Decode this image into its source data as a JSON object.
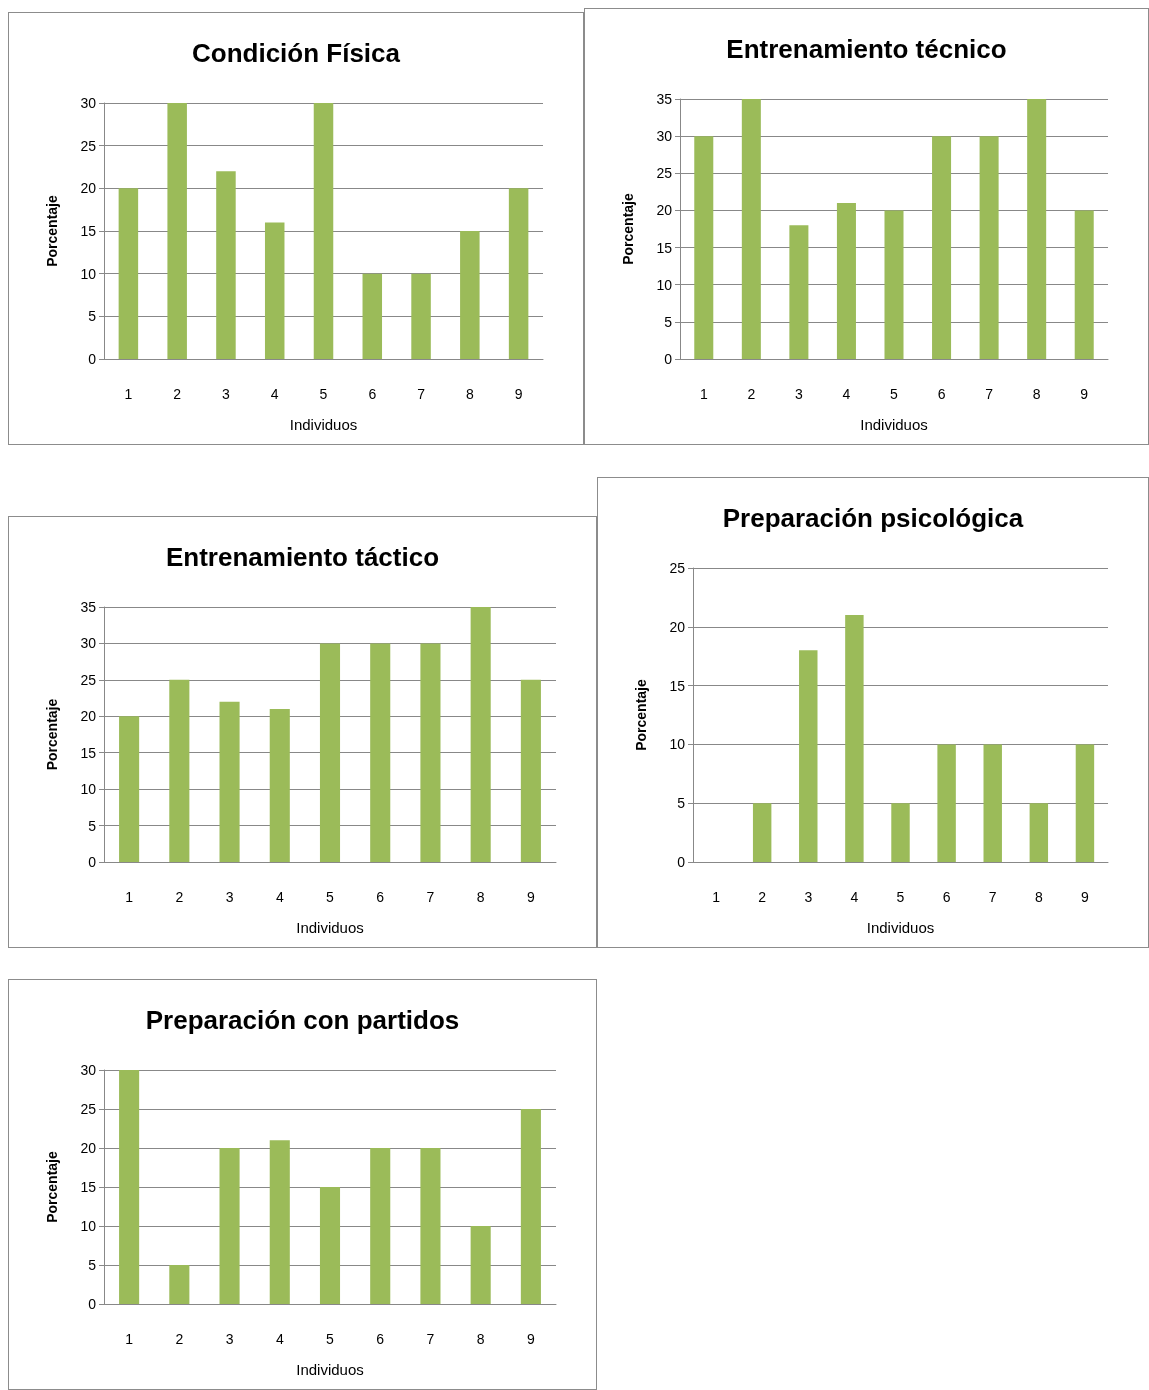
{
  "chart_data": [
    {
      "type": "bar",
      "title": "Condición Física",
      "xlabel": "Individuos",
      "ylabel": "Porcentaje",
      "categories": [
        "1",
        "2",
        "3",
        "4",
        "5",
        "6",
        "7",
        "8",
        "9"
      ],
      "values": [
        20,
        30,
        22,
        16,
        30,
        10,
        10,
        15,
        20
      ],
      "color": "#9bbb59",
      "ylim": [
        0,
        30
      ],
      "yticks": [
        0,
        5,
        10,
        15,
        20,
        25,
        30
      ],
      "grid": "y"
    },
    {
      "type": "bar",
      "title": "Entrenamiento técnico",
      "xlabel": "Individuos",
      "ylabel": "Porcentaje",
      "categories": [
        "1",
        "2",
        "3",
        "4",
        "5",
        "6",
        "7",
        "8",
        "9"
      ],
      "values": [
        30,
        35,
        18,
        21,
        20,
        30,
        30,
        35,
        20
      ],
      "color": "#9bbb59",
      "ylim": [
        0,
        35
      ],
      "yticks": [
        0,
        5,
        10,
        15,
        20,
        25,
        30,
        35
      ],
      "grid": "y"
    },
    {
      "type": "bar",
      "title": "Entrenamiento táctico",
      "xlabel": "Individuos",
      "ylabel": "Porcentaje",
      "categories": [
        "1",
        "2",
        "3",
        "4",
        "5",
        "6",
        "7",
        "8",
        "9"
      ],
      "values": [
        20,
        25,
        22,
        21,
        30,
        30,
        30,
        35,
        25
      ],
      "color": "#9bbb59",
      "ylim": [
        0,
        35
      ],
      "yticks": [
        0,
        5,
        10,
        15,
        20,
        25,
        30,
        35
      ],
      "grid": "y"
    },
    {
      "type": "bar",
      "title": "Preparación psicológica",
      "xlabel": "Individuos",
      "ylabel": "Porcentaje",
      "categories": [
        "1",
        "2",
        "3",
        "4",
        "5",
        "6",
        "7",
        "8",
        "9"
      ],
      "values": [
        0,
        5,
        18,
        21,
        5,
        10,
        10,
        5,
        10
      ],
      "color": "#9bbb59",
      "ylim": [
        0,
        25
      ],
      "yticks": [
        0,
        5,
        10,
        15,
        20,
        25
      ],
      "grid": "y"
    },
    {
      "type": "bar",
      "title": "Preparación con partidos",
      "xlabel": "Individuos",
      "ylabel": "Porcentaje",
      "categories": [
        "1",
        "2",
        "3",
        "4",
        "5",
        "6",
        "7",
        "8",
        "9"
      ],
      "values": [
        30,
        5,
        20,
        21,
        15,
        20,
        20,
        10,
        25
      ],
      "color": "#9bbb59",
      "ylim": [
        0,
        30
      ],
      "yticks": [
        0,
        5,
        10,
        15,
        20,
        25,
        30
      ],
      "grid": "y"
    }
  ]
}
